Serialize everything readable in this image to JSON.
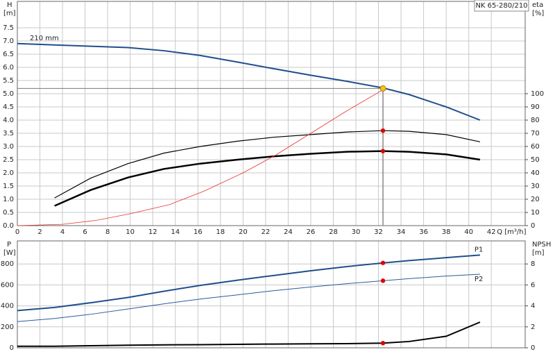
{
  "chart_data": [
    {
      "type": "line",
      "title": "NK 65-280/210",
      "ylabel": "H",
      "yunit": "[m]",
      "y2label": "eta",
      "y2unit": "[%]",
      "xlabel": "Q [m³/h]",
      "xlim": [
        0,
        45
      ],
      "xticks": [
        0,
        2,
        4,
        6,
        8,
        10,
        12,
        14,
        16,
        18,
        20,
        22,
        24,
        26,
        28,
        30,
        32,
        34,
        36,
        38,
        40,
        42
      ],
      "ylim": [
        0,
        8.5
      ],
      "yticks": [
        {
          "value": 0,
          "label": "0.0"
        },
        0.5,
        {
          "value": 1,
          "label": "1.0"
        },
        1.5,
        {
          "value": 2,
          "label": "2.0"
        },
        2.5,
        {
          "value": 3,
          "label": "3.0"
        },
        3.5,
        {
          "value": 4,
          "label": "4.0"
        },
        4.5,
        {
          "value": 5,
          "label": "5.0"
        },
        5.5,
        {
          "value": 6,
          "label": "6.0"
        },
        6.5,
        {
          "value": 7,
          "label": "7.0"
        },
        7.5
      ],
      "y2lim": [
        0,
        170
      ],
      "y2ticks": [
        0,
        10,
        20,
        30,
        40,
        50,
        60,
        70,
        80,
        90,
        100
      ],
      "grid": true,
      "operating_point": {
        "x": 32.4,
        "y": 5.2,
        "color": "#f5c518"
      },
      "series": [
        {
          "name": "210 mm",
          "name_position": "start",
          "color": "#1f4e8c",
          "width": 2,
          "x": [
            0,
            3.3,
            6.5,
            9.8,
            13,
            16.2,
            19.5,
            22.7,
            26,
            29.2,
            32.4,
            34.7,
            38,
            41
          ],
          "values": [
            6.9,
            6.85,
            6.8,
            6.75,
            6.63,
            6.45,
            6.2,
            5.95,
            5.7,
            5.47,
            5.22,
            4.97,
            4.5,
            4.0
          ]
        },
        {
          "color": "#000000",
          "width": 1.2,
          "axis": "y2",
          "dot": true,
          "x": [
            3.3,
            6.5,
            9.8,
            13,
            16.2,
            19.5,
            22.7,
            26,
            29.2,
            32.4,
            34.7,
            38,
            41
          ],
          "values": [
            21,
            36,
            47,
            55,
            60,
            64,
            67,
            69,
            71,
            72,
            71.5,
            69,
            63.5
          ]
        },
        {
          "color": "#000000",
          "width": 2.5,
          "axis": "y2",
          "dot": true,
          "x": [
            3.3,
            6.5,
            9.8,
            13,
            16.2,
            19.5,
            22.7,
            26,
            29.2,
            32.4,
            34.7,
            38,
            41
          ],
          "values": [
            15,
            27,
            36.5,
            43,
            47,
            50,
            52.5,
            54.5,
            56,
            56.5,
            56,
            54,
            50
          ]
        },
        {
          "color": "#e83030",
          "width": 0.8,
          "x": [
            0,
            4,
            7,
            10,
            13.5,
            16.5,
            20,
            23,
            26,
            29,
            32.4
          ],
          "values": [
            0,
            0.05,
            0.2,
            0.45,
            0.8,
            1.3,
            2.0,
            2.7,
            3.5,
            4.3,
            5.15
          ]
        }
      ]
    },
    {
      "type": "line",
      "ylabel": "P",
      "yunit": "[W]",
      "y2label": "NPSH",
      "y2unit": "[m]",
      "xlim": [
        0,
        45
      ],
      "ylim": [
        0,
        1020
      ],
      "yticks": [
        0,
        200,
        400,
        600,
        800
      ],
      "y2lim": [
        0,
        10.2
      ],
      "y2ticks": [
        0,
        2,
        4,
        6,
        8
      ],
      "grid": true,
      "series": [
        {
          "name": "P1",
          "name_position": "end-above",
          "color": "#1f4e8c",
          "width": 2,
          "dot": true,
          "x": [
            0,
            3.3,
            6.5,
            9.8,
            13,
            16.2,
            19.5,
            22.7,
            26,
            29.2,
            32.4,
            34.7,
            38,
            41
          ],
          "values": [
            355,
            385,
            430,
            480,
            540,
            595,
            645,
            690,
            735,
            775,
            810,
            832,
            860,
            885
          ]
        },
        {
          "name": "P2",
          "name_position": "end-below",
          "color": "#2a5a9a",
          "width": 1,
          "dot": true,
          "x": [
            0,
            3.3,
            6.5,
            9.8,
            13,
            16.2,
            19.5,
            22.7,
            26,
            29.2,
            32.4,
            34.7,
            38,
            41
          ],
          "values": [
            250,
            280,
            320,
            370,
            420,
            465,
            505,
            545,
            580,
            612,
            640,
            660,
            685,
            702
          ]
        },
        {
          "color": "#000000",
          "width": 2,
          "axis": "y2",
          "dot": true,
          "x": [
            0,
            3.3,
            6.5,
            9.8,
            13,
            16.2,
            19.5,
            22.7,
            26,
            29.2,
            32.4,
            34.7,
            38,
            41
          ],
          "values": [
            0.15,
            0.15,
            0.2,
            0.25,
            0.28,
            0.3,
            0.33,
            0.36,
            0.38,
            0.4,
            0.45,
            0.6,
            1.1,
            2.45
          ]
        }
      ]
    }
  ]
}
